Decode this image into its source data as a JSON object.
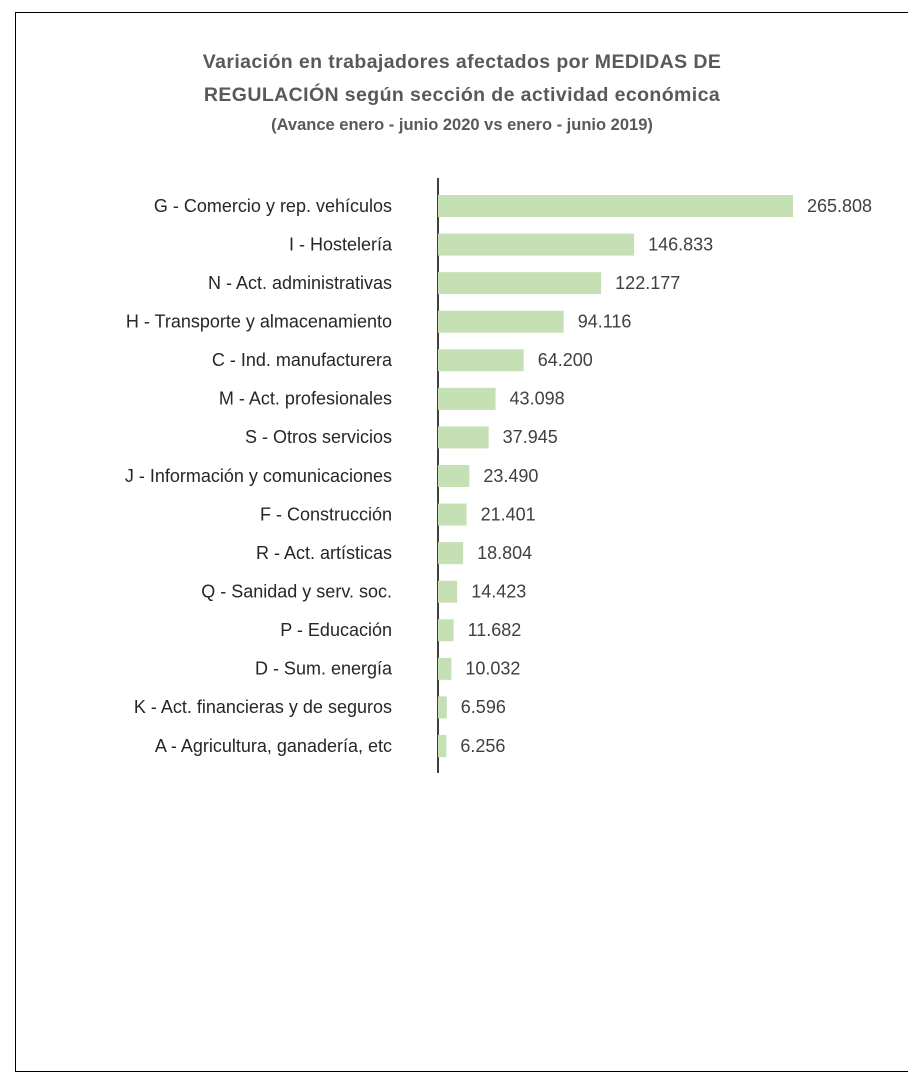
{
  "chart_data": {
    "type": "bar",
    "orientation": "horizontal",
    "title": "Variación en trabajadores afectados por MEDIDAS DE REGULACIÓN según sección de actividad económica",
    "subtitle": "(Avance enero - junio 2020 vs enero - junio 2019)",
    "categories": [
      "G - Comercio y rep. vehículos",
      "I - Hostelería",
      "N - Act. administrativas",
      "H - Transporte y almacenamiento",
      "C - Ind. manufacturera",
      "M - Act. profesionales",
      "S - Otros servicios",
      "J - Información y comunicaciones",
      "F - Construcción",
      "R - Act. artísticas",
      "Q - Sanidad y serv. soc.",
      "P - Educación",
      "D - Sum. energía",
      "K - Act. financieras y de seguros",
      "A - Agricultura, ganadería, etc"
    ],
    "values": [
      265808,
      146833,
      122177,
      94116,
      64200,
      43098,
      37945,
      23490,
      21401,
      18804,
      14423,
      11682,
      10032,
      6596,
      6256
    ],
    "value_labels": [
      "265.808",
      "146.833",
      "122.177",
      "94.116",
      "64.200",
      "43.098",
      "37.945",
      "23.490",
      "21.401",
      "18.804",
      "14.423",
      "11.682",
      "10.032",
      "6.596",
      "6.256"
    ],
    "color": "#c5e0b4"
  }
}
